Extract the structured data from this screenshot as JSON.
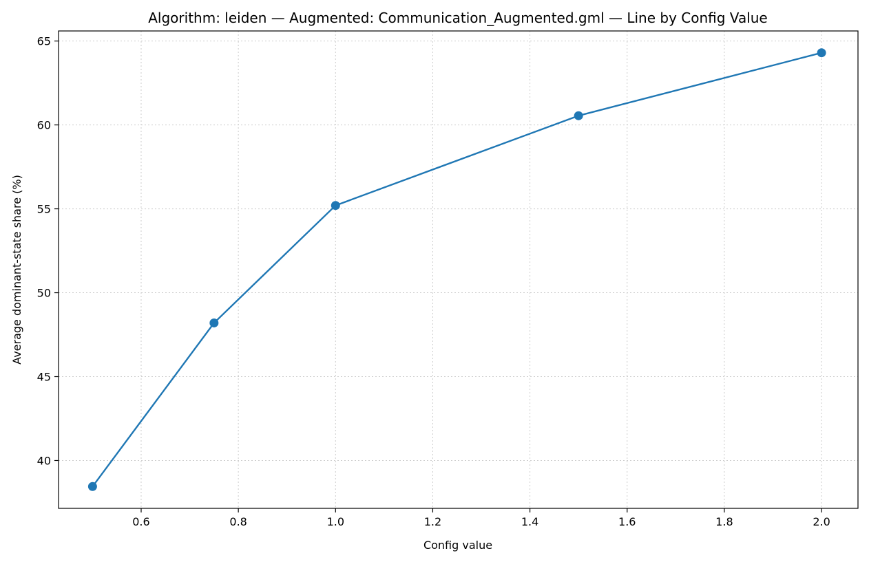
{
  "chart_data": {
    "type": "line",
    "title": "Algorithm: leiden — Augmented: Communication_Augmented.gml — Line by Config Value",
    "xlabel": "Config value",
    "ylabel": "Average dominant-state share (%)",
    "x": [
      0.5,
      0.75,
      1.0,
      1.5,
      2.0
    ],
    "series": [
      {
        "values": [
          38.45,
          48.2,
          55.2,
          60.55,
          64.3
        ]
      }
    ],
    "xlim": [
      0.43,
      2.075
    ],
    "ylim": [
      37.15,
      65.6
    ],
    "xticks": [
      0.6,
      0.8,
      1.0,
      1.2,
      1.4,
      1.6,
      1.8,
      2.0
    ],
    "xtick_labels": [
      "0.6",
      "0.8",
      "1.0",
      "1.2",
      "1.4",
      "1.6",
      "1.8",
      "2.0"
    ],
    "yticks": [
      40,
      45,
      50,
      55,
      60,
      65
    ],
    "ytick_labels": [
      "40",
      "45",
      "50",
      "55",
      "60",
      "65"
    ],
    "grid": true,
    "line_color": "#1f77b4",
    "marker": "circle"
  }
}
